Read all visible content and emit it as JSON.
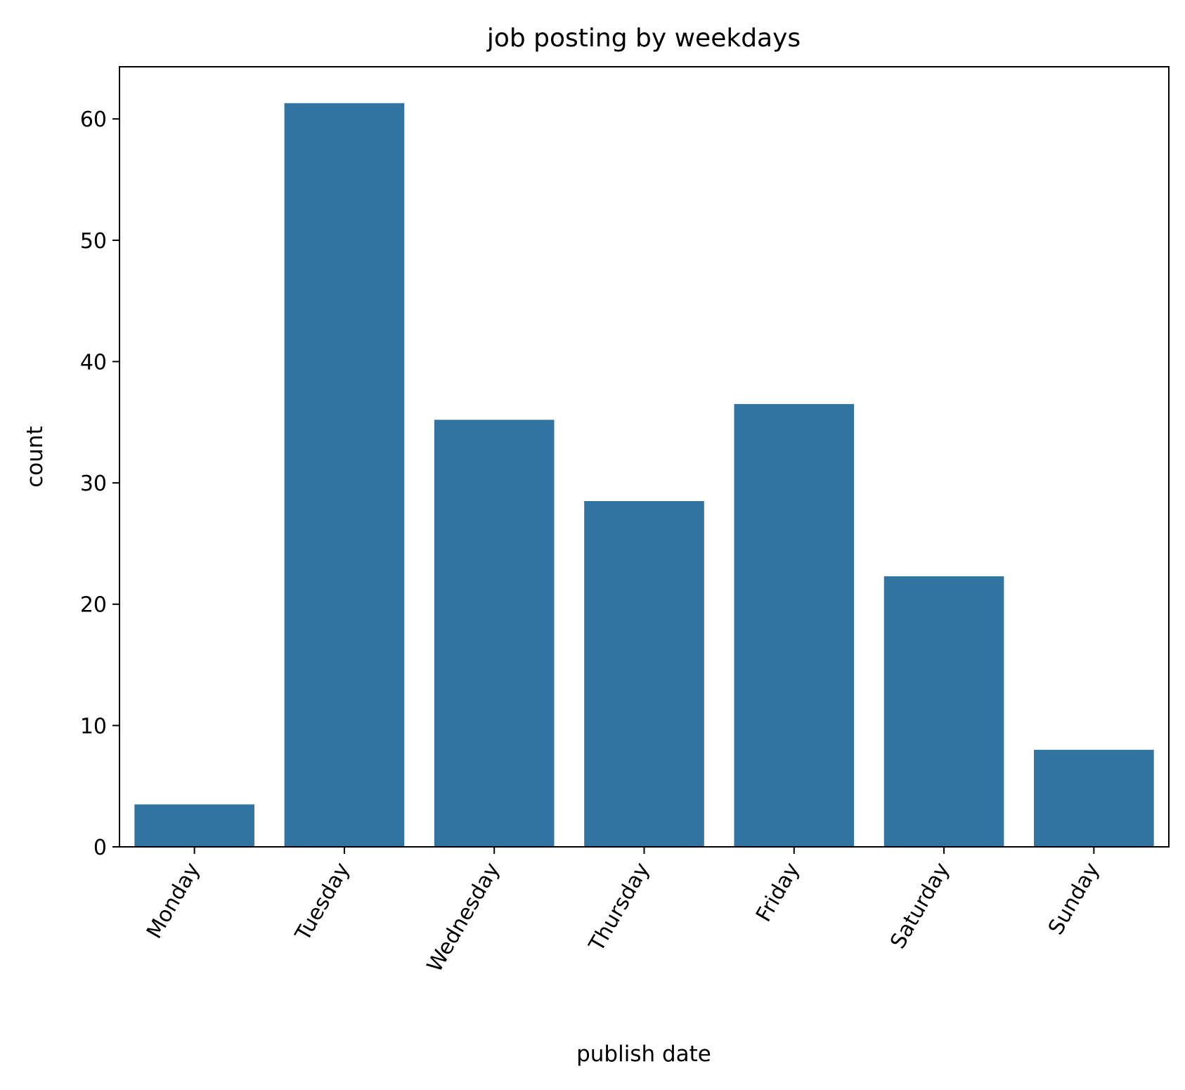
{
  "chart_data": {
    "type": "bar",
    "title": "job posting by weekdays",
    "xlabel": "publish date",
    "ylabel": "count",
    "categories": [
      "Monday",
      "Tuesday",
      "Wednesday",
      "Thursday",
      "Friday",
      "Saturday",
      "Sunday"
    ],
    "values": [
      3.5,
      61.3,
      35.2,
      28.5,
      36.5,
      22.3,
      8.0
    ],
    "ylim": [
      0,
      64.3
    ],
    "yticks": [
      0,
      10,
      20,
      30,
      40,
      50,
      60
    ],
    "grid": false,
    "legend": "none",
    "bar_color": "#3274a1"
  }
}
